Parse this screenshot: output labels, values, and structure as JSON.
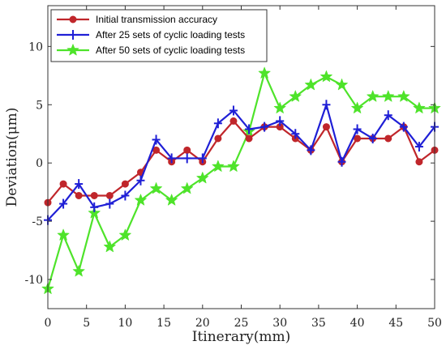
{
  "chart_data": {
    "type": "line",
    "title": "",
    "xlabel": "Itinerary(mm)",
    "ylabel": "Deviation(μm)",
    "xlim": [
      0,
      50
    ],
    "ylim": [
      -12.5,
      13.5
    ],
    "xticks": [
      0,
      5,
      10,
      15,
      20,
      25,
      30,
      35,
      40,
      45,
      50
    ],
    "yticks": [
      -10,
      -5,
      0,
      5,
      10
    ],
    "grid": false,
    "legend_position": "top-left",
    "x": [
      0,
      2,
      4,
      6,
      8,
      10,
      12,
      14,
      16,
      18,
      20,
      22,
      24,
      26,
      28,
      30,
      32,
      34,
      36,
      38,
      40,
      42,
      44,
      46,
      48,
      50
    ],
    "series": [
      {
        "name": "Initial transmission accuracy",
        "color": "#c0262b",
        "marker": "circle",
        "values": [
          -3.4,
          -1.8,
          -2.8,
          -2.8,
          -2.8,
          -1.8,
          -0.8,
          1.1,
          0.1,
          1.1,
          0.1,
          2.1,
          3.6,
          2.1,
          3.1,
          3.1,
          2.1,
          1.1,
          3.1,
          0.1,
          2.1,
          2.1,
          2.1,
          3.1,
          0.1,
          1.1
        ]
      },
      {
        "name": "After 25 sets of cyclic loading tests",
        "color": "#1f1fd6",
        "marker": "plus",
        "values": [
          -4.9,
          -3.5,
          -1.8,
          -3.8,
          -3.5,
          -2.8,
          -1.5,
          2.0,
          0.4,
          0.4,
          0.4,
          3.4,
          4.5,
          2.9,
          3.1,
          3.6,
          2.5,
          1.1,
          5.0,
          0.1,
          2.9,
          2.1,
          4.1,
          3.1,
          1.4,
          3.1
        ]
      },
      {
        "name": "After 50 sets of cyclic loading tests",
        "color": "#4ee32a",
        "marker": "star",
        "values": [
          -10.8,
          -6.2,
          -9.3,
          -4.3,
          -7.2,
          -6.2,
          -3.2,
          -2.2,
          -3.2,
          -2.2,
          -1.3,
          -0.3,
          -0.3,
          2.7,
          7.7,
          4.7,
          5.7,
          6.7,
          7.4,
          6.7,
          4.7,
          5.7,
          5.7,
          5.7,
          4.7,
          4.7
        ]
      }
    ]
  }
}
